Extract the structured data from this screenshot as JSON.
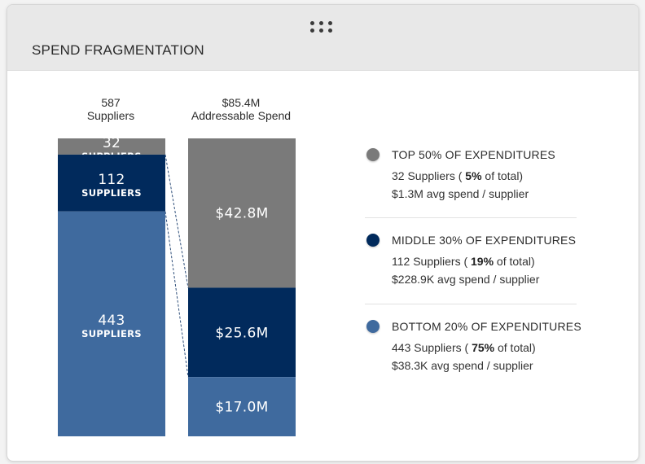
{
  "card": {
    "title": "SPEND FRAGMENTATION",
    "drag_icon": "drag-handle-dots-icon"
  },
  "columns": {
    "suppliers": {
      "value": "587",
      "label": "Suppliers"
    },
    "spend": {
      "value": "$85.4M",
      "label": "Addressable Spend"
    }
  },
  "colors": {
    "top": "#7a7a7a",
    "middle": "#012a5c",
    "bottom": "#3f6a9e",
    "connector": "#2f4f7a"
  },
  "chart_data": {
    "type": "stacked-bar",
    "categories": [
      "Suppliers",
      "Addressable Spend"
    ],
    "series": [
      {
        "name": "TOP 50% OF EXPENDITURES",
        "key": "top",
        "suppliers": 32,
        "spend": 42.8,
        "value_label": "32",
        "sub_label": "SUPPLIERS",
        "spend_label": "$42.8M"
      },
      {
        "name": "MIDDLE 30% OF EXPENDITURES",
        "key": "middle",
        "suppliers": 112,
        "spend": 25.6,
        "value_label": "112",
        "sub_label": "SUPPLIERS",
        "spend_label": "$25.6M"
      },
      {
        "name": "BOTTOM 20% OF EXPENDITURES",
        "key": "bottom",
        "suppliers": 443,
        "spend": 17.0,
        "value_label": "443",
        "sub_label": "SUPPLIERS",
        "spend_label": "$17.0M"
      }
    ],
    "totals": {
      "suppliers": 587,
      "spend": 85.4
    }
  },
  "legend": [
    {
      "key": "top",
      "title": "TOP 50% OF EXPENDITURES",
      "count_prefix": "32 Suppliers ( ",
      "pct": "5%",
      "count_suffix": " of total)",
      "avg": "$1.3M avg spend / supplier"
    },
    {
      "key": "middle",
      "title": "MIDDLE 30% OF EXPENDITURES",
      "count_prefix": "112 Suppliers ( ",
      "pct": "19%",
      "count_suffix": " of total)",
      "avg": "$228.9K avg spend / supplier"
    },
    {
      "key": "bottom",
      "title": "BOTTOM 20% OF EXPENDITURES",
      "count_prefix": "443 Suppliers ( ",
      "pct": "75%",
      "count_suffix": " of total)",
      "avg": "$38.3K avg spend / supplier"
    }
  ]
}
